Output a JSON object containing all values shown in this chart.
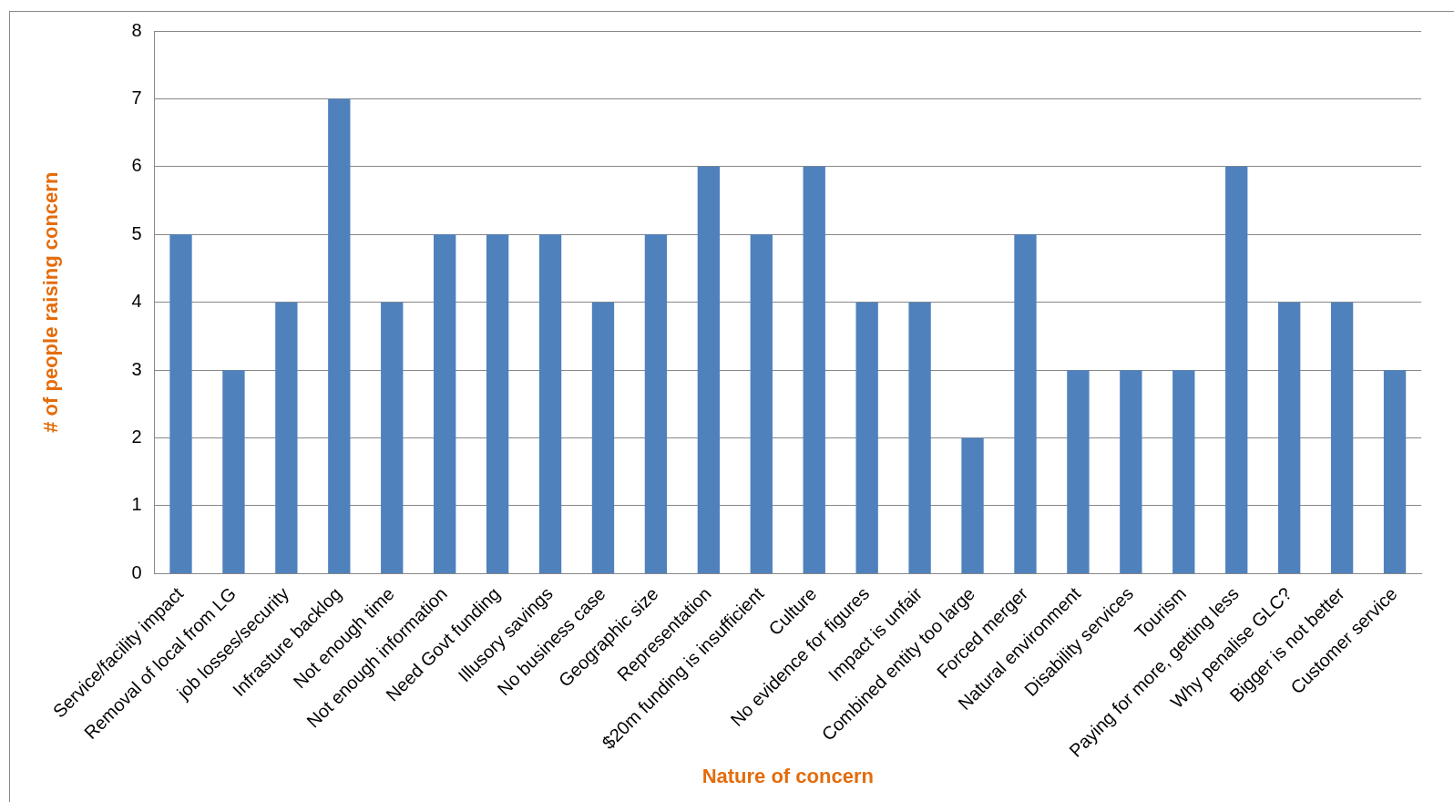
{
  "chart_data": {
    "type": "bar",
    "xlabel": "Nature of concern",
    "ylabel": "# of people raising concern",
    "categories": [
      "Service/facility impact",
      "Removal of local from LG",
      "job losses/security",
      "Infrasture backlog",
      "Not enough time",
      "Not enough information",
      "Need Govt funding",
      "Illusory savings",
      "No business case",
      "Geographic size",
      "Representation",
      "$20m funding is insufficient",
      "Culture",
      "No evidence for figures",
      "Impact is unfair",
      "Combined entity too large",
      "Forced merger",
      "Natural environment",
      "Disability services",
      "Tourism",
      "Paying for more, getting less",
      "Why penalise GLC?",
      "Bigger is not better",
      "Customer service"
    ],
    "values": [
      5,
      3,
      4,
      7,
      4,
      5,
      5,
      5,
      4,
      5,
      6,
      5,
      6,
      4,
      4,
      2,
      5,
      3,
      3,
      3,
      6,
      4,
      4,
      3
    ],
    "color": "#4f81bd",
    "ylim": [
      0,
      8
    ],
    "yticks": [
      0,
      1,
      2,
      3,
      4,
      5,
      6,
      7,
      8
    ],
    "grid": "y",
    "legend": false
  }
}
